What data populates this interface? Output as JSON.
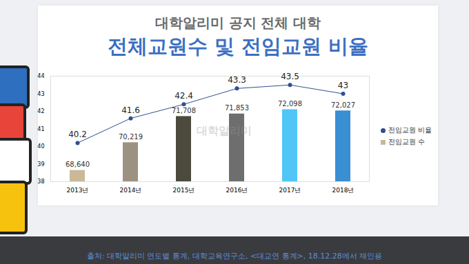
{
  "chart_data": {
    "type": "bar",
    "subtitle": "대학알리미 공지 전체 대학",
    "title": "전체교원수 및 전임교원 비율",
    "watermark": "대학알리미",
    "source": "출처: 대학알리미 연도별 통계, 대학교육연구소, <대교연 통계>, 18.12.28에서 재인용",
    "categories": [
      "2013년",
      "2014년",
      "2015년",
      "2016년",
      "2017년",
      "2018년"
    ],
    "series": [
      {
        "name": "전임교원 비율",
        "type": "line",
        "axis": "y",
        "color": "#2f4f8f",
        "marker": "circle",
        "values": [
          40.2,
          41.6,
          42.4,
          43.3,
          43.5,
          43
        ]
      },
      {
        "name": "전임교원 수",
        "type": "bar",
        "axis": "y2",
        "colors": [
          "#c9b998",
          "#9b9282",
          "#4b4a3c",
          "#6e6e6e",
          "#4fc6f5",
          "#3a8ed2"
        ],
        "values": [
          68640,
          70219,
          71708,
          71853,
          72098,
          72027
        ],
        "value_labels": [
          "68,640",
          "70,219",
          "71,708",
          "71,853",
          "72,098",
          "72,027"
        ]
      }
    ],
    "ylim": [
      38,
      44
    ],
    "yticks": [
      38,
      39,
      40,
      41,
      42,
      43,
      44
    ],
    "y2lim": [
      68000,
      74000
    ],
    "y2ticks": [],
    "data_labels": true,
    "grid": false,
    "legend": "right"
  }
}
